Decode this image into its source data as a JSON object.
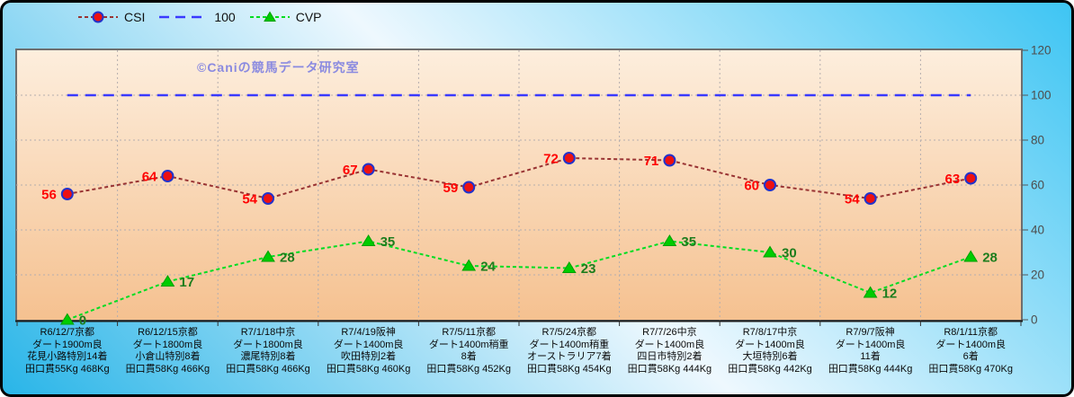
{
  "watermark": "©Caniの競馬データ研究室",
  "colors": {
    "outer_background": [
      "#29b5e8",
      "#eef8fe",
      "#3ec5f3"
    ],
    "plot_background": [
      "#fdeedd",
      "#f5c190"
    ],
    "gridline": "#b5aeae",
    "axis_tick_label": "#4d4d4d",
    "x_axis_label": "#0a0a0a",
    "watermark": "#8a8ae0"
  },
  "chart_data": {
    "type": "line",
    "title": "",
    "xlabel": "",
    "ylabel": "",
    "y_axis_side": "right",
    "ylim": [
      0,
      120
    ],
    "yticks": [
      0,
      20,
      40,
      60,
      80,
      100,
      120
    ],
    "grid": true,
    "legend_position": "top-left",
    "categories": [
      [
        "R6/12/7京都",
        "ダート1900m良",
        "花見小路特別14着",
        "田口貫55Kg 468Kg"
      ],
      [
        "R6/12/15京都",
        "ダート1800m良",
        "小倉山特別8着",
        "田口貫58Kg 466Kg"
      ],
      [
        "R7/1/18中京",
        "ダート1800m良",
        "濃尾特別8着",
        "田口貫58Kg 466Kg"
      ],
      [
        "R7/4/19阪神",
        "ダート1400m良",
        "吹田特別2着",
        "田口貫58Kg 460Kg"
      ],
      [
        "R7/5/11京都",
        "ダート1400m稍重",
        "8着",
        "田口貫58Kg 452Kg"
      ],
      [
        "R7/5/24京都",
        "ダート1400m稍重",
        "オーストラリア7着",
        "田口貫58Kg 454Kg"
      ],
      [
        "R7/7/26中京",
        "ダート1400m良",
        "四日市特別2着",
        "田口貫58Kg 444Kg"
      ],
      [
        "R7/8/17中京",
        "ダート1400m良",
        "大垣特別6着",
        "田口貫58Kg 442Kg"
      ],
      [
        "R7/9/7阪神",
        "ダート1400m良",
        "11着",
        "田口貫58Kg 444Kg"
      ],
      [
        "R8/1/11京都",
        "ダート1400m良",
        "6着",
        "田口貫58Kg 470Kg"
      ]
    ],
    "series": [
      {
        "name": "CSI",
        "marker": "circle",
        "values": [
          56,
          64,
          54,
          67,
          59,
          72,
          71,
          60,
          54,
          63
        ],
        "line_color": "#993333",
        "marker_fill": "#ee1111",
        "marker_stroke": "#2233cc",
        "label_color": "#ff0000",
        "label_side": "left",
        "show_labels": true
      },
      {
        "name": "100",
        "marker": "none",
        "values": [
          100,
          100,
          100,
          100,
          100,
          100,
          100,
          100,
          100,
          100
        ],
        "line_color": "#3a3aff",
        "show_labels": false
      },
      {
        "name": "CVP",
        "marker": "triangle",
        "values": [
          0,
          17,
          28,
          35,
          24,
          23,
          35,
          30,
          12,
          28
        ],
        "line_color": "#00dd22",
        "marker_fill": "#00cc00",
        "marker_stroke": "#00a000",
        "label_color": "#1d7d1d",
        "label_side": "right",
        "show_labels": true
      }
    ]
  }
}
